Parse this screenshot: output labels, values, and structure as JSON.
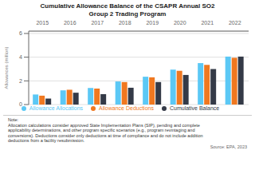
{
  "chart_data": {
    "type": "bar",
    "title": "Cumulative Allowance Balance of the CSAPR Annual SO2\nGroup 2 Trading Program",
    "y_label": "Allowances (million)",
    "categories": [
      "2015",
      "2016",
      "2017",
      "2018",
      "2019",
      "2020",
      "2021",
      "2022"
    ],
    "series": [
      {
        "name": "Allowance Allocations",
        "color": "#5bc8f5",
        "values": [
          0.85,
          1.2,
          1.4,
          1.95,
          2.35,
          2.95,
          3.5,
          4.05
        ]
      },
      {
        "name": "Allowance Deductions",
        "color": "#f07820",
        "values": [
          0.75,
          1.25,
          1.35,
          1.9,
          2.3,
          2.85,
          3.35,
          3.95
        ]
      },
      {
        "name": "Cumulative Balance",
        "color": "#343a47",
        "values": [
          0.5,
          1.0,
          0.88,
          1.42,
          1.9,
          2.5,
          3.0,
          4.05
        ]
      }
    ],
    "ylim": [
      0,
      6.2
    ],
    "yticks": [
      0,
      2,
      4,
      6
    ],
    "grid": true,
    "note": "Note:\nAllocation calculations consider approved State Implementation Plans (SIP), pending and complete\napplicability determinations, and other program specific scenarios (e.g., program revintaging and\nconversions). Deductions consider only deductions at time of compliance and do not include addition\ndeductions from a facility resubmission.",
    "source": "Source: EPA, 2023"
  }
}
